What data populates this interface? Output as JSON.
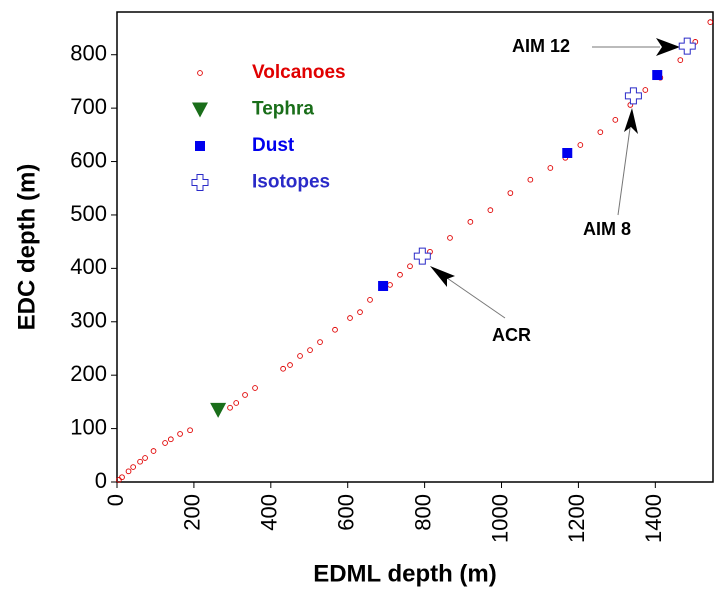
{
  "chart_data": {
    "type": "scatter",
    "x_label": "EDML depth (m)",
    "y_label": "EDC depth (m)",
    "xlim": [
      0,
      1550
    ],
    "ylim": [
      0,
      880
    ],
    "xticks": [
      0,
      200,
      400,
      600,
      800,
      1000,
      1200,
      1400
    ],
    "yticks": [
      0,
      100,
      200,
      300,
      400,
      500,
      600,
      700,
      800
    ],
    "series": [
      {
        "name": "Volcanoes",
        "color": "#e00000",
        "marker": "circle",
        "x": [
          5,
          13,
          30,
          42,
          60,
          73,
          95,
          125,
          140,
          164,
          190,
          294,
          310,
          333,
          359,
          432,
          450,
          476,
          502,
          528,
          567,
          606,
          632,
          658,
          710,
          736,
          762,
          814,
          866,
          919,
          971,
          1023,
          1075,
          1127,
          1166,
          1205,
          1257,
          1296,
          1335,
          1374,
          1413,
          1465,
          1504,
          1543
        ],
        "y": [
          4,
          9,
          20,
          28,
          38,
          45,
          58,
          73,
          80,
          90,
          97,
          139,
          148,
          163,
          176,
          212,
          219,
          236,
          247,
          262,
          285,
          307,
          318,
          341,
          369,
          388,
          404,
          431,
          457,
          487,
          509,
          541,
          566,
          588,
          607,
          631,
          655,
          678,
          706,
          734,
          757,
          790,
          824,
          861
        ]
      },
      {
        "name": "Tephra",
        "color": "#1a6e1a",
        "marker": "triangle-down",
        "x": [
          263
        ],
        "y": [
          135
        ]
      },
      {
        "name": "Dust",
        "color": "#0000ee",
        "marker": "square",
        "x": [
          692,
          1171,
          1405
        ],
        "y": [
          367,
          616,
          762
        ]
      },
      {
        "name": "Isotopes",
        "color": "#2a2ac8",
        "marker": "plus",
        "x": [
          794,
          1343,
          1483
        ],
        "y": [
          423,
          723,
          816
        ]
      }
    ],
    "annotations": [
      "AIM 12",
      "AIM 8",
      "ACR"
    ]
  }
}
